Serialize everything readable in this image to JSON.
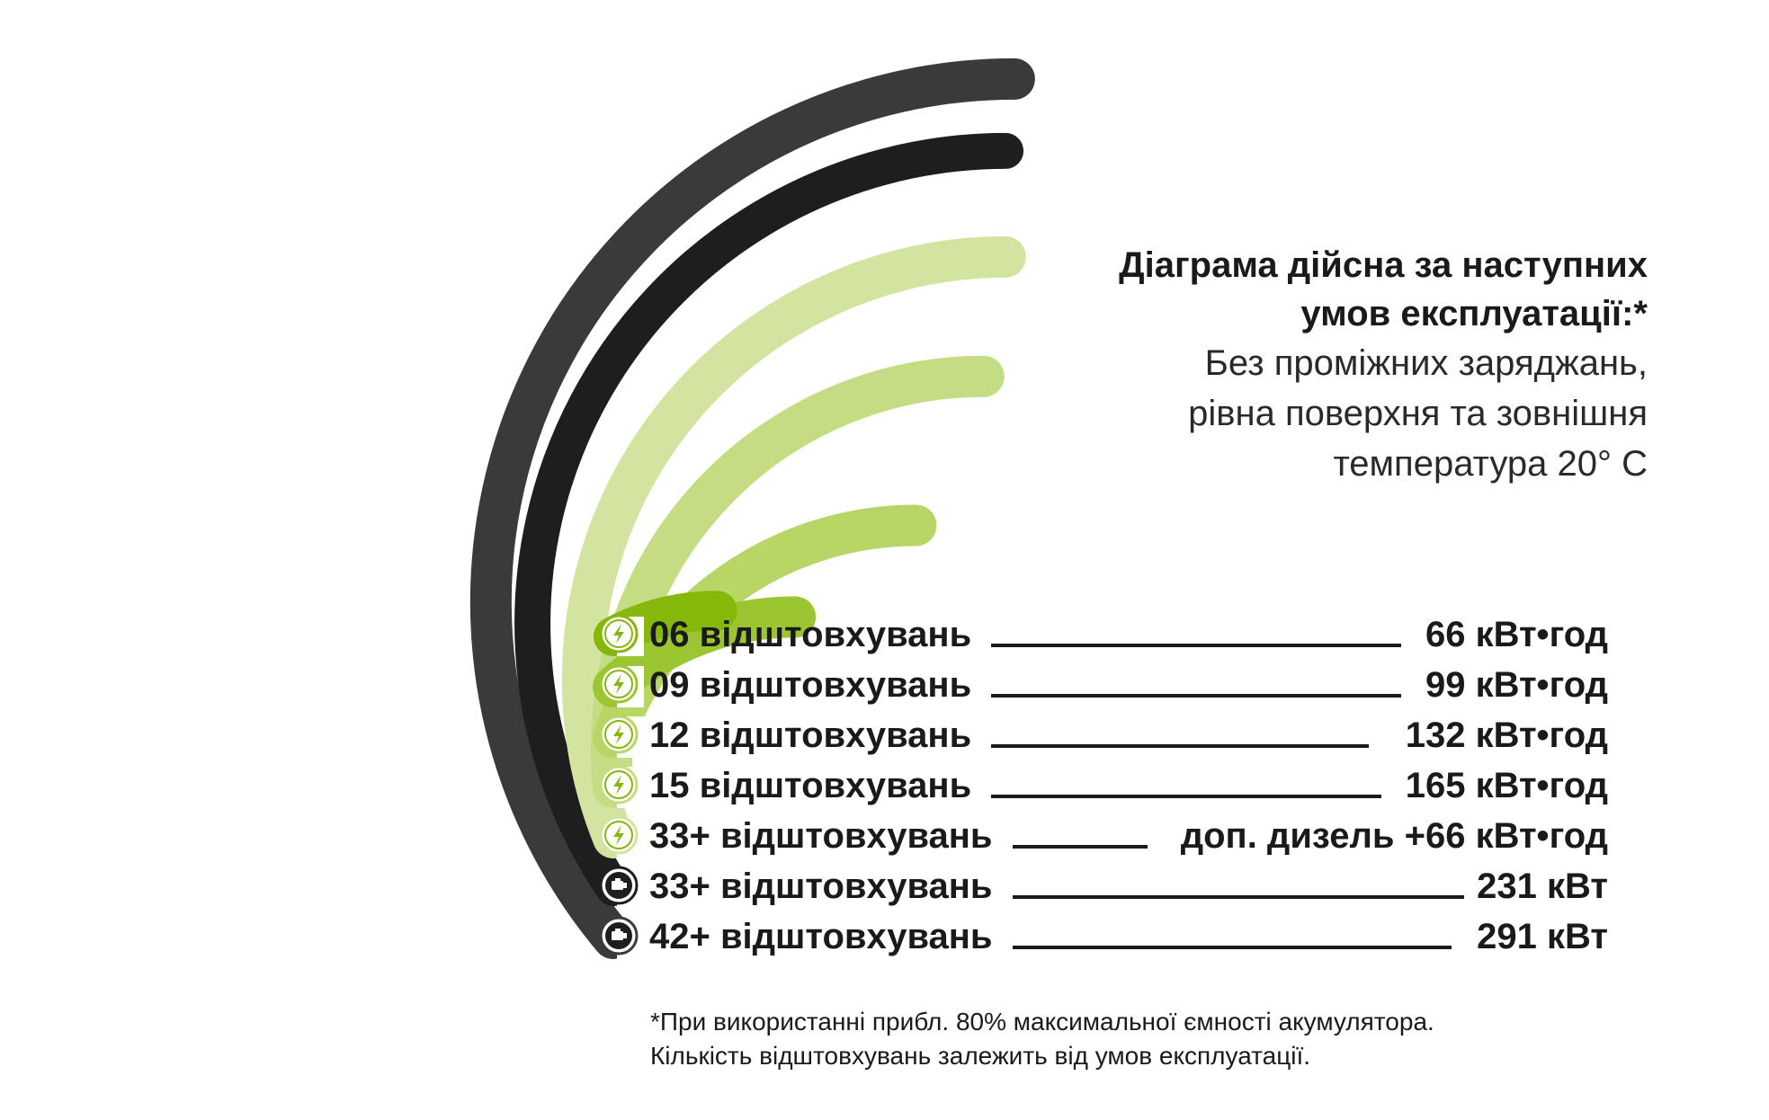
{
  "info": {
    "title_line1": "Діаграма дійсна за наступних",
    "title_line2": "умов експлуатації:*",
    "sub_line1": "Без проміжних заряджань,",
    "sub_line2": "рівна поверхня та зовнішня",
    "sub_line3": "температура 20° C"
  },
  "footnote": {
    "line1": "*При використанні прибл. 80% максимальної ємності акумулятора.",
    "line2": "Кількість відштовхувань залежить від умов експлуатації."
  },
  "chart_data": {
    "type": "radial-bar",
    "rows": [
      {
        "label": "06 відштовхувань",
        "value_text": "66 кВт•год",
        "icon": "lightning-icon",
        "color": "#86b70b"
      },
      {
        "label": "09 відштовхувань",
        "value_text": "99 кВт•год",
        "icon": "lightning-icon",
        "color": "#9cc631"
      },
      {
        "label": "12 відштовхувань",
        "value_text": "132 кВт•год",
        "icon": "lightning-icon",
        "color": "#b7d665"
      },
      {
        "label": "15 відштовхувань",
        "value_text": "165 кВт•год",
        "icon": "lightning-icon",
        "color": "#c5dd82"
      },
      {
        "label": "33+ відштовхувань",
        "value_text": "доп. дизель +66 кВт•год",
        "icon": "lightning-icon",
        "color": "#d2e49f"
      },
      {
        "label": "33+ відштовхувань",
        "value_text": "231 кВт",
        "icon": "engine-icon",
        "color": "#1e1e1e"
      },
      {
        "label": "42+ відштовхувань",
        "value_text": "291 кВт",
        "icon": "engine-icon",
        "color": "#3a3a3a"
      }
    ]
  }
}
